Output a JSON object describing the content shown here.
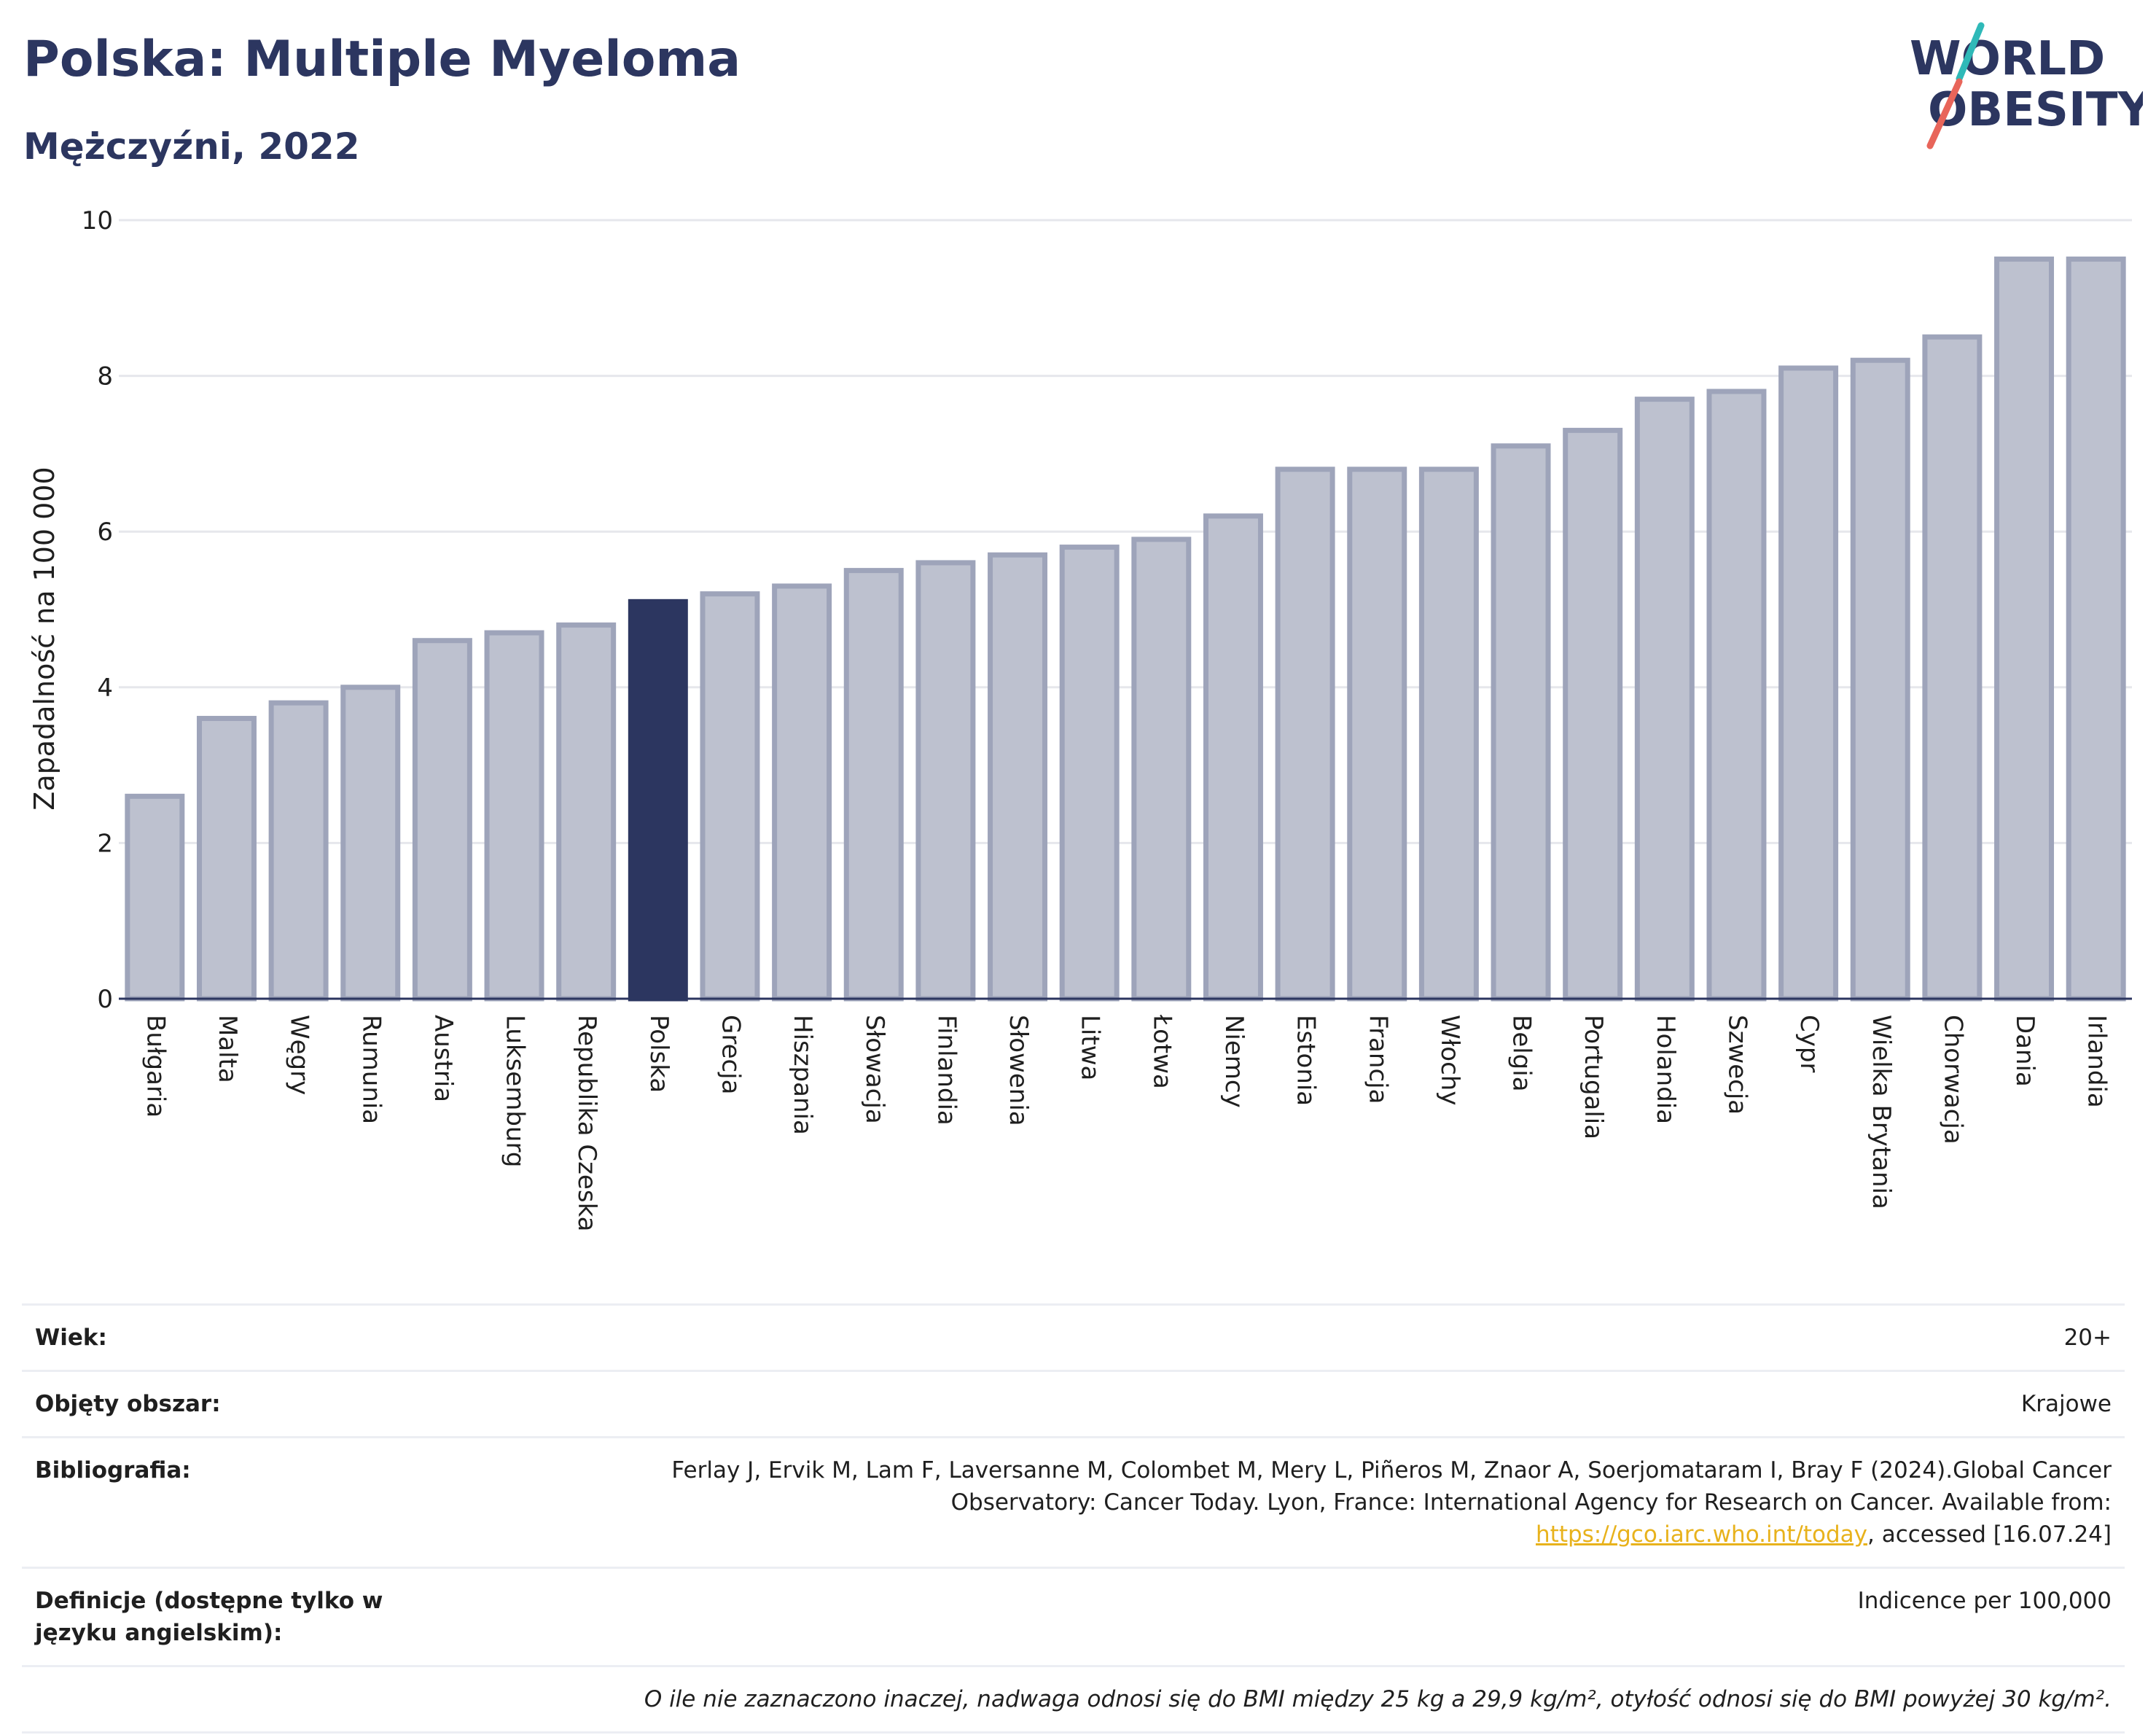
{
  "header": {
    "title": "Polska: Multiple Myeloma",
    "subtitle": "Mężczyźni, 2022"
  },
  "logo": {
    "line1": "WORLD",
    "line2": "OBESITY",
    "colors": {
      "text": "#2c3660",
      "slash_teal": "#2fb9b8",
      "slash_coral": "#e8655a"
    }
  },
  "colors": {
    "bar": "#bdc1cf",
    "bar_outline": "#9ea4ba",
    "highlight": "#2c3660",
    "grid": "#e6e7ec",
    "axis": "#2c3660"
  },
  "chart_data": {
    "type": "bar",
    "title": "Polska: Multiple Myeloma",
    "subtitle": "Mężczyźni, 2022",
    "ylabel": "Zapadalność na 100 000",
    "xlabel": "",
    "ylim": [
      0,
      10
    ],
    "yticks": [
      0,
      2,
      4,
      6,
      8,
      10
    ],
    "grid": true,
    "highlight": "Polska",
    "categories": [
      "Bułgaria",
      "Malta",
      "Węgry",
      "Rumunia",
      "Austria",
      "Luksemburg",
      "Republika Czeska",
      "Polska",
      "Grecja",
      "Hiszpania",
      "Słowacja",
      "Finlandia",
      "Słowenia",
      "Litwa",
      "Łotwa",
      "Niemcy",
      "Estonia",
      "Francja",
      "Włochy",
      "Belgia",
      "Portugalia",
      "Holandia",
      "Szwecja",
      "Cypr",
      "Wielka Brytania",
      "Chorwacja",
      "Dania",
      "Irlandia"
    ],
    "values": [
      2.6,
      3.6,
      3.8,
      4.0,
      4.6,
      4.7,
      4.8,
      5.1,
      5.2,
      5.3,
      5.5,
      5.6,
      5.7,
      5.8,
      5.9,
      6.2,
      6.8,
      6.8,
      6.8,
      7.1,
      7.3,
      7.7,
      7.8,
      8.1,
      8.2,
      8.5,
      9.5,
      9.5
    ]
  },
  "info": {
    "age_label": "Wiek:",
    "age_value": "20+",
    "coverage_label": "Objęty obszar:",
    "coverage_value": "Krajowe",
    "bibliography_label": "Bibliografia:",
    "bibliography_text": "Ferlay J, Ervik M, Lam F, Laversanne M, Colombet M, Mery L, Piñeros M, Znaor A, Soerjomataram I, Bray F (2024).Global Cancer Observatory: Cancer Today. Lyon, France: International Agency for Research on Cancer. Available from: ",
    "bibliography_link": "https://gco.iarc.who.int/today",
    "bibliography_suffix": ", accessed [16.07.24]",
    "definitions_label": "Definicje (dostępne tylko w języku angielskim):",
    "definitions_value": "Indicence per 100,000",
    "note": "O ile nie zaznaczono inaczej, nadwaga odnosi się do BMI między 25 kg a 29,9 kg/m², otyłość odnosi się do BMI powyżej 30 kg/m²."
  }
}
